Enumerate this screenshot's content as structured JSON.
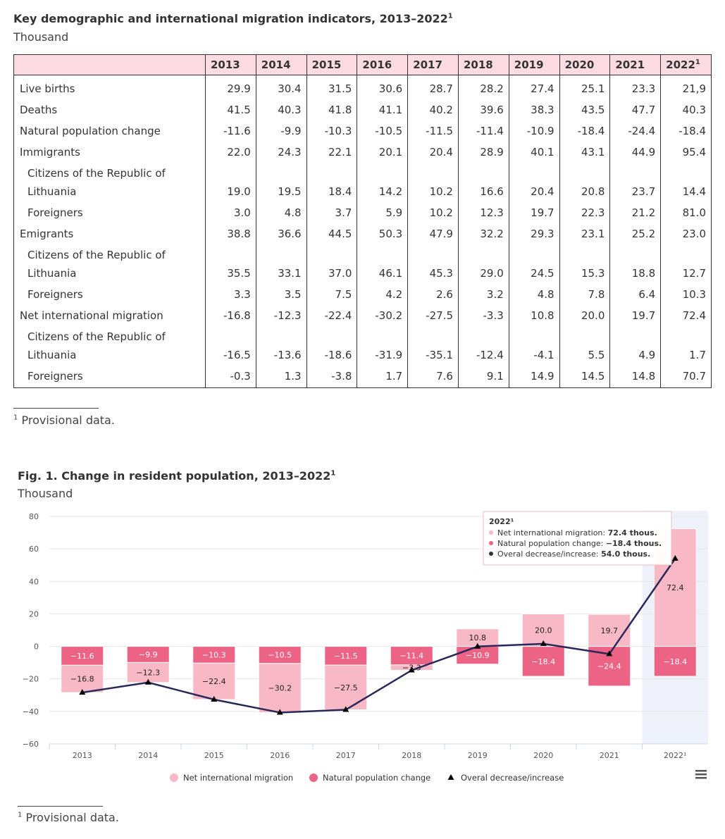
{
  "table": {
    "title": "Key demographic and international migration indicators, 2013–2022",
    "title_mark": "1",
    "unit": "Thousand",
    "header": [
      "2013",
      "2014",
      "2015",
      "2016",
      "2017",
      "2018",
      "2019",
      "2020",
      "2021",
      "2022"
    ],
    "header_last_mark": "1",
    "rows": [
      {
        "label": "Live births",
        "indent": false,
        "cells": [
          "29.9",
          "30.4",
          "31.5",
          "30.6",
          "28.7",
          "28.2",
          "27.4",
          "25.1",
          "23.3",
          "21,9"
        ]
      },
      {
        "label": "Deaths",
        "indent": false,
        "cells": [
          "41.5",
          "40.3",
          "41.8",
          "41.1",
          "40.2",
          "39.6",
          "38.3",
          "43.5",
          "47.7",
          "40.3"
        ]
      },
      {
        "label": "Natural population change",
        "indent": false,
        "cells": [
          "-11.6",
          "-9.9",
          "-10.3",
          "-10.5",
          "-11.5",
          "-11.4",
          "-10.9",
          "-18.4",
          "-24.4",
          "-18.4"
        ]
      },
      {
        "label": "Immigrants",
        "indent": false,
        "cells": [
          "22.0",
          "24.3",
          "22.1",
          "20.1",
          "20.4",
          "28.9",
          "40.1",
          "43.1",
          "44.9",
          "95.4"
        ]
      },
      {
        "label": "Citizens of the Republic of Lithuania",
        "indent": true,
        "cells": [
          "19.0",
          "19.5",
          "18.4",
          "14.2",
          "10.2",
          "16.6",
          "20.4",
          "20.8",
          "23.7",
          "14.4"
        ]
      },
      {
        "label": "Foreigners",
        "indent": true,
        "cells": [
          "3.0",
          "4.8",
          "3.7",
          "5.9",
          "10.2",
          "12.3",
          "19.7",
          "22.3",
          "21.2",
          "81.0"
        ]
      },
      {
        "label": "Emigrants",
        "indent": false,
        "cells": [
          "38.8",
          "36.6",
          "44.5",
          "50.3",
          "47.9",
          "32.2",
          "29.3",
          "23.1",
          "25.2",
          "23.0"
        ]
      },
      {
        "label": "Citizens of the Republic of Lithuania",
        "indent": true,
        "cells": [
          "35.5",
          "33.1",
          "37.0",
          "46.1",
          "45.3",
          "29.0",
          "24.5",
          "15.3",
          "18.8",
          "12.7"
        ]
      },
      {
        "label": "Foreigners",
        "indent": true,
        "cells": [
          "3.3",
          "3.5",
          "7.5",
          "4.2",
          "2.6",
          "3.2",
          "4.8",
          "7.8",
          "6.4",
          "10.3"
        ]
      },
      {
        "label": "Net international migration",
        "indent": false,
        "cells": [
          "-16.8",
          "-12.3",
          "-22.4",
          "-30.2",
          "-27.5",
          "-3.3",
          "10.8",
          "20.0",
          "19.7",
          "72.4"
        ]
      },
      {
        "label": "Citizens of the Republic of Lithuania",
        "indent": true,
        "cells": [
          "-16.5",
          "-13.6",
          "-18.6",
          "-31.9",
          "-35.1",
          "-12.4",
          "-4.1",
          "5.5",
          "4.9",
          "1.7"
        ]
      },
      {
        "label": "Foreigners",
        "indent": true,
        "cells": [
          "-0.3",
          "1.3",
          "-3.8",
          "1.7",
          "7.6",
          "9.1",
          "14.9",
          "14.5",
          "14.8",
          "70.7"
        ]
      }
    ],
    "footnote": {
      "mark": "1",
      "text": "Provisional data."
    }
  },
  "chart_data": {
    "type": "bar",
    "title": "Fig. 1. Change in resident population, 2013–2022",
    "title_mark": "1",
    "subtitle": "Thousand",
    "categories": [
      "2013",
      "2014",
      "2015",
      "2016",
      "2017",
      "2018",
      "2019",
      "2020",
      "2021",
      "2022¹"
    ],
    "stacked": true,
    "series": [
      {
        "name": "Net international migration",
        "color": "#f8b8c5",
        "values": [
          -16.8,
          -12.3,
          -22.4,
          -30.2,
          -27.5,
          -3.3,
          10.8,
          20.0,
          19.7,
          72.4
        ],
        "value_labels": [
          "−16.8",
          "−12.3",
          "−22.4",
          "−30.2",
          "−27.5",
          "−3.3",
          "10.8",
          "20.0",
          "19.7",
          "72.4"
        ]
      },
      {
        "name": "Natural population change",
        "color": "#ec6385",
        "values": [
          -11.6,
          -9.9,
          -10.3,
          -10.5,
          -11.5,
          -11.4,
          -10.9,
          -18.4,
          -24.4,
          -18.4
        ],
        "value_labels": [
          "−11.6",
          "−9.9",
          "−10.3",
          "−10.5",
          "−11.5",
          "−11.4",
          "−10.9",
          "−18.4",
          "−24.4",
          "−18.4"
        ]
      },
      {
        "name": "Overal decrease/increase",
        "type": "line",
        "color": "#28285a",
        "values": [
          -28.4,
          -22.2,
          -32.7,
          -40.7,
          -39.0,
          -14.7,
          -0.1,
          1.6,
          -4.7,
          54.0
        ]
      }
    ],
    "ylim": [
      -60,
      80
    ],
    "yticks": [
      {
        "value": -60,
        "label": "−60"
      },
      {
        "value": -40,
        "label": "−40"
      },
      {
        "value": -20,
        "label": "−20"
      },
      0,
      20,
      40,
      60,
      80
    ],
    "grid": true,
    "legend": "bottom",
    "tooltip": {
      "title": "2022¹",
      "lines": [
        {
          "label": "Net international migration: ",
          "value": "72.4 thous."
        },
        {
          "label": "Natural population change: ",
          "value": "−18.4 thous."
        },
        {
          "label": "Overal decrease/increase: ",
          "value": "54.0 thous."
        }
      ]
    },
    "footnote": {
      "mark": "1",
      "text": "Provisional data."
    }
  }
}
